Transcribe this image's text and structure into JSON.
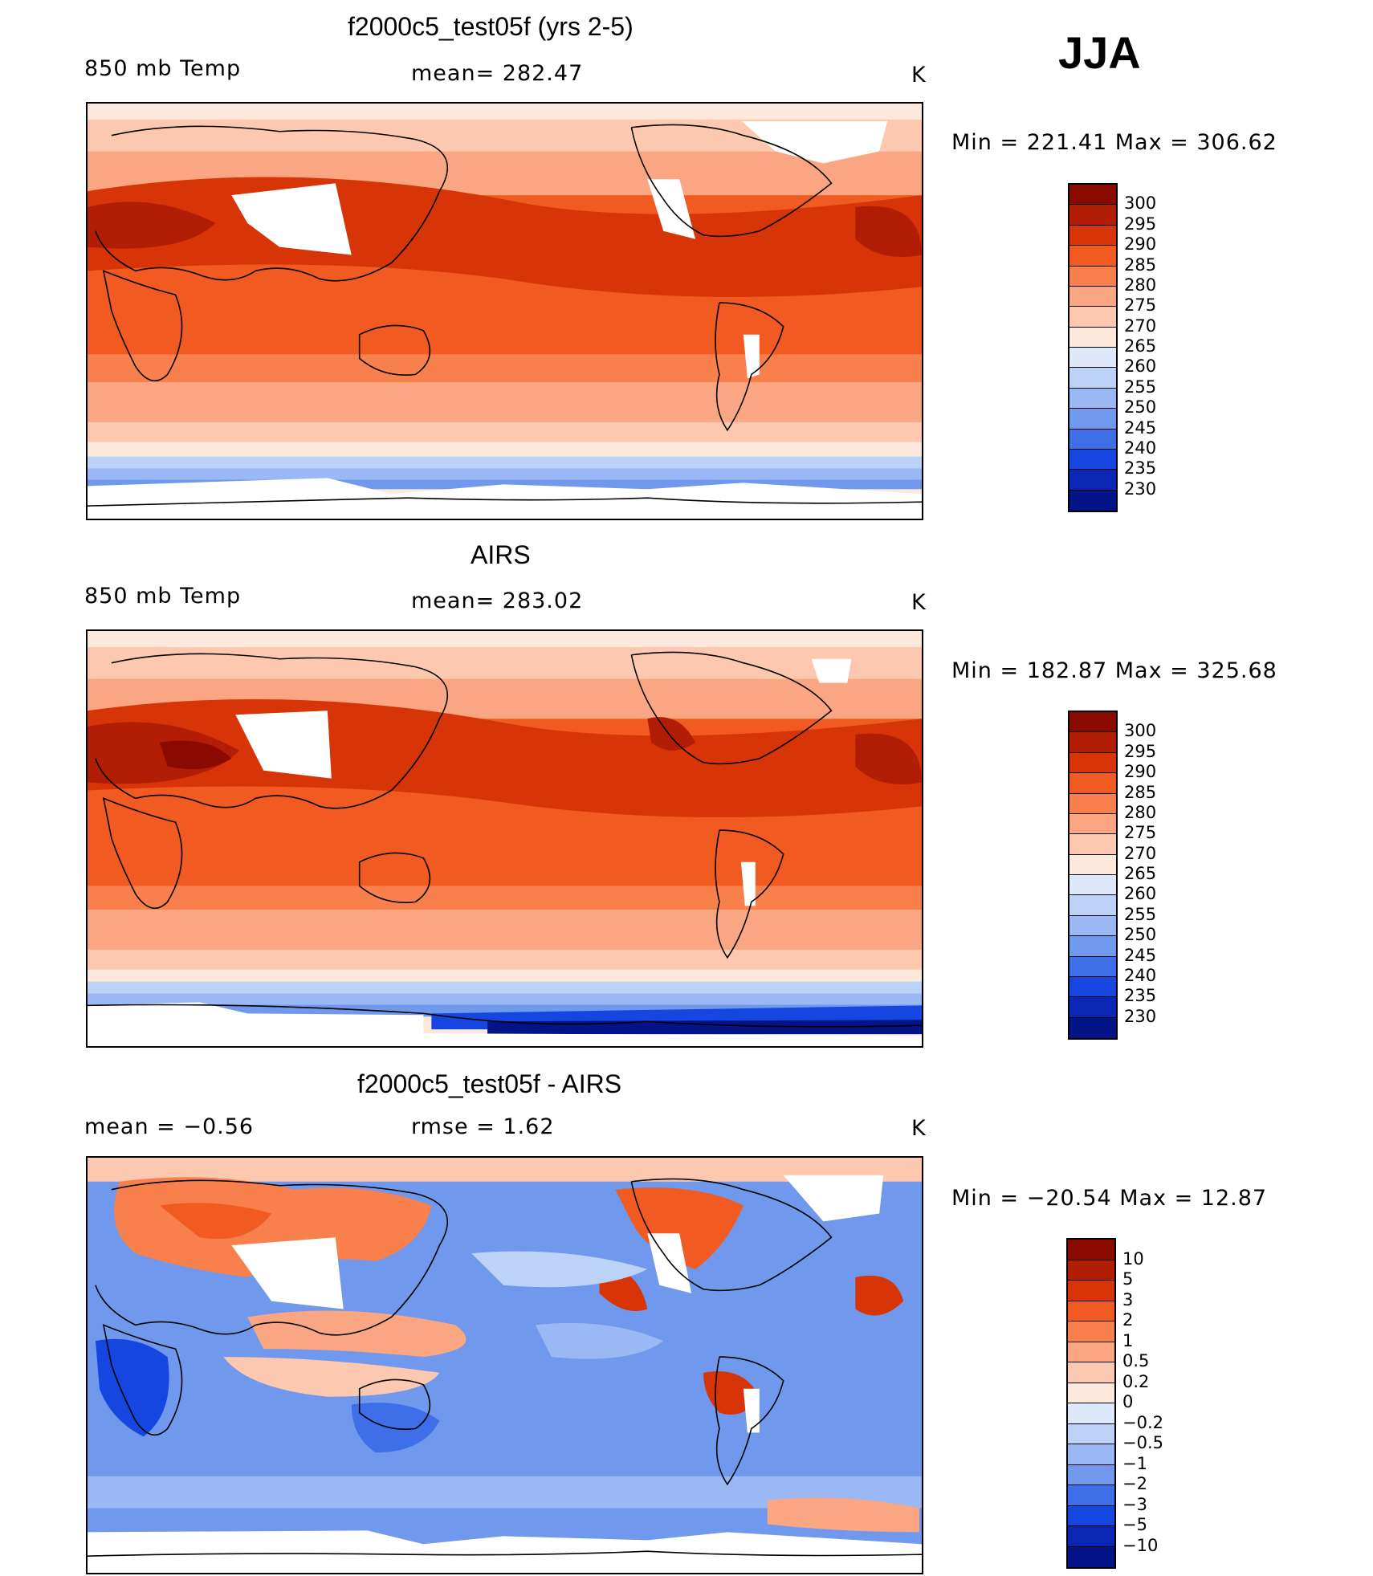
{
  "season": "JJA",
  "panels": [
    {
      "title": "f2000c5_test05f (yrs 2-5)",
      "left_label": "850 mb Temp",
      "center_label": "mean= 282.47",
      "units": "K",
      "minmax": "Min = 221.41 Max = 306.62",
      "colorbar_labels": [
        "300",
        "295",
        "290",
        "285",
        "280",
        "275",
        "270",
        "265",
        "260",
        "255",
        "250",
        "245",
        "240",
        "235",
        "230"
      ],
      "colors": [
        "#8b0a00",
        "#b21d05",
        "#d73508",
        "#f15a20",
        "#f8804d",
        "#fba683",
        "#fcc8b0",
        "#fde9dc",
        "#dde9fa",
        "#bcd3f7",
        "#9ab8f3",
        "#7098ec",
        "#3e6ee8",
        "#1547e0",
        "#0a26b5",
        "#031488"
      ]
    },
    {
      "title": "AIRS",
      "left_label": "850 mb Temp",
      "center_label": "mean= 283.02",
      "units": "K",
      "minmax": "Min = 182.87 Max = 325.68",
      "colorbar_labels": [
        "300",
        "295",
        "290",
        "285",
        "280",
        "275",
        "270",
        "265",
        "260",
        "255",
        "250",
        "245",
        "240",
        "235",
        "230"
      ],
      "colors": [
        "#8b0a00",
        "#b21d05",
        "#d73508",
        "#f15a20",
        "#f8804d",
        "#fba683",
        "#fcc8b0",
        "#fde9dc",
        "#dde9fa",
        "#bcd3f7",
        "#9ab8f3",
        "#7098ec",
        "#3e6ee8",
        "#1547e0",
        "#0a26b5",
        "#031488"
      ]
    },
    {
      "title": "f2000c5_test05f - AIRS",
      "left_label": "mean =   −0.56",
      "center_label": "rmse =    1.62",
      "units": "K",
      "minmax": "Min = −20.54 Max =   12.87",
      "colorbar_labels": [
        "10",
        "5",
        "3",
        "2",
        "1",
        "0.5",
        "0.2",
        "0",
        "−0.2",
        "−0.5",
        "−1",
        "−2",
        "−3",
        "−5",
        "−10"
      ],
      "colors": [
        "#8b0a00",
        "#b21d05",
        "#d73508",
        "#f15a20",
        "#f8804d",
        "#fba683",
        "#fcc8b0",
        "#fde9dc",
        "#dde9fa",
        "#bcd3f7",
        "#9ab8f3",
        "#7098ec",
        "#3e6ee8",
        "#1547e0",
        "#0a26b5",
        "#031488"
      ]
    }
  ],
  "chart_data": [
    {
      "type": "heatmap",
      "title": "f2000c5_test05f (yrs 2-5)",
      "variable": "850 mb Temp",
      "units": "K",
      "mean": 282.47,
      "min": 221.41,
      "max": 306.62,
      "contour_levels": [
        230,
        235,
        240,
        245,
        250,
        255,
        260,
        265,
        270,
        275,
        280,
        285,
        290,
        295,
        300
      ]
    },
    {
      "type": "heatmap",
      "title": "AIRS",
      "variable": "850 mb Temp",
      "units": "K",
      "mean": 283.02,
      "min": 182.87,
      "max": 325.68,
      "contour_levels": [
        230,
        235,
        240,
        245,
        250,
        255,
        260,
        265,
        270,
        275,
        280,
        285,
        290,
        295,
        300
      ]
    },
    {
      "type": "heatmap",
      "title": "f2000c5_test05f - AIRS",
      "units": "K",
      "mean": -0.56,
      "rmse": 1.62,
      "min": -20.54,
      "max": 12.87,
      "contour_levels": [
        -10,
        -5,
        -3,
        -2,
        -1,
        -0.5,
        -0.2,
        0,
        0.2,
        0.5,
        1,
        2,
        3,
        5,
        10
      ]
    }
  ]
}
